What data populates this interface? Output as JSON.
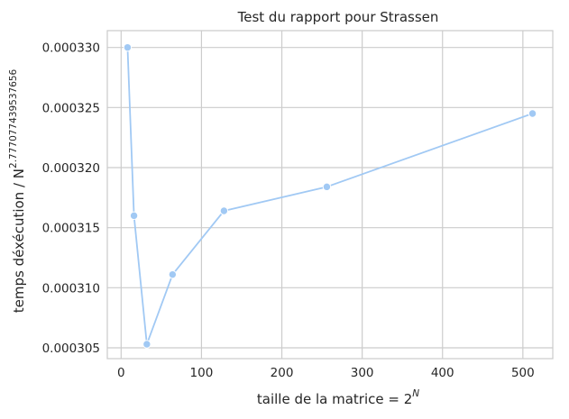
{
  "chart_data": {
    "type": "line",
    "title": "Test du rapport pour Strassen",
    "xlabel": {
      "text": "taille de la matrice = 2",
      "superscript": "N"
    },
    "ylabel": {
      "text": "temps déxécution / N",
      "superscript": "2.777077439537656"
    },
    "grid": true,
    "legend": "none",
    "xlim": [
      -17.2,
      537.2
    ],
    "ylim": [
      0.0003041,
      0.0003314
    ],
    "xticks": [
      {
        "value": 0,
        "label": "0"
      },
      {
        "value": 100,
        "label": "100"
      },
      {
        "value": 200,
        "label": "200"
      },
      {
        "value": 300,
        "label": "300"
      },
      {
        "value": 400,
        "label": "400"
      },
      {
        "value": 500,
        "label": "500"
      }
    ],
    "yticks": [
      {
        "value": 0.000305,
        "label": "0.000305"
      },
      {
        "value": 0.00031,
        "label": "0.000310"
      },
      {
        "value": 0.000315,
        "label": "0.000315"
      },
      {
        "value": 0.00032,
        "label": "0.000320"
      },
      {
        "value": 0.000325,
        "label": "0.000325"
      },
      {
        "value": 0.00033,
        "label": "0.000330"
      }
    ],
    "series": [
      {
        "color": "#a1c9f4",
        "x": [
          8,
          16,
          32,
          64,
          128,
          256,
          512
        ],
        "y": [
          0.00033,
          0.000316,
          0.0003053,
          0.0003111,
          0.0003164,
          0.0003184,
          0.0003245
        ]
      }
    ],
    "colors": {
      "grid": "#cccccc",
      "frame": "#cccccc",
      "text": "#262626",
      "marker_edge": "#ffffff"
    }
  }
}
